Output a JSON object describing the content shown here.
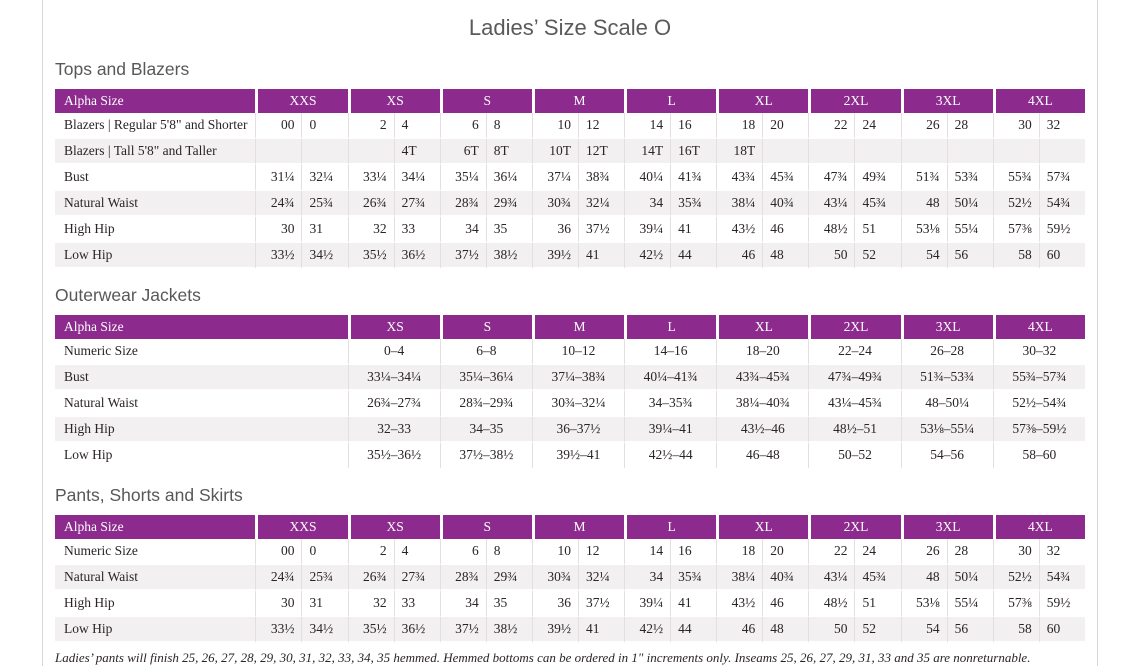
{
  "page": {
    "title": "Ladies’ Size Scale O",
    "footnote": "Ladies’ pants will finish 25, 26, 27, 28, 29, 30, 31, 32, 33, 34, 35 hemmed. Hemmed bottoms can be ordered in 1\" increments only. Inseams 25, 26, 27, 29, 31, 33 and 35 are nonreturnable."
  },
  "colors": {
    "header_purple": "#8c2b8d",
    "row_alt_gray": "#f2f0f0",
    "heading_gray": "#58585a",
    "frame_line_gray": "#d6d6d6"
  },
  "sections": [
    {
      "heading": "Tops and Blazers",
      "table_type": "paired",
      "label_header": "Alpha Size",
      "size_headers": [
        "XXS",
        "XS",
        "S",
        "M",
        "L",
        "XL",
        "2XL",
        "3XL",
        "4XL"
      ],
      "rows": [
        {
          "label": "Blazers | Regular 5'8\" and Shorter",
          "values": [
            "00",
            "0",
            "2",
            "4",
            "6",
            "8",
            "10",
            "12",
            "14",
            "16",
            "18",
            "20",
            "22",
            "24",
            "26",
            "28",
            "30",
            "32"
          ]
        },
        {
          "label": "Blazers | Tall 5'8\" and Taller",
          "values": [
            "",
            "",
            "",
            "4T",
            "6T",
            "8T",
            "10T",
            "12T",
            "14T",
            "16T",
            "18T",
            "",
            "",
            "",
            "",
            "",
            "",
            ""
          ]
        },
        {
          "label": "Bust",
          "values": [
            "31¼",
            "32¼",
            "33¼",
            "34¼",
            "35¼",
            "36¼",
            "37¼",
            "38¾",
            "40¼",
            "41¾",
            "43¾",
            "45¾",
            "47¾",
            "49¾",
            "51¾",
            "53¾",
            "55¾",
            "57¾"
          ]
        },
        {
          "label": "Natural Waist",
          "values": [
            "24¾",
            "25¾",
            "26¾",
            "27¾",
            "28¾",
            "29¾",
            "30¾",
            "32¼",
            "34",
            "35¾",
            "38¼",
            "40¾",
            "43¼",
            "45¾",
            "48",
            "50¼",
            "52½",
            "54¾"
          ]
        },
        {
          "label": "High Hip",
          "values": [
            "30",
            "31",
            "32",
            "33",
            "34",
            "35",
            "36",
            "37½",
            "39¼",
            "41",
            "43½",
            "46",
            "48½",
            "51",
            "53⅛",
            "55¼",
            "57⅜",
            "59½"
          ]
        },
        {
          "label": "Low Hip",
          "values": [
            "33½",
            "34½",
            "35½",
            "36½",
            "37½",
            "38½",
            "39½",
            "41",
            "42½",
            "44",
            "46",
            "48",
            "50",
            "52",
            "54",
            "56",
            "58",
            "60"
          ]
        }
      ]
    },
    {
      "heading": "Outerwear Jackets",
      "table_type": "single",
      "label_header": "Alpha Size",
      "size_headers": [
        "XS",
        "S",
        "M",
        "L",
        "XL",
        "2XL",
        "3XL",
        "4XL"
      ],
      "rows": [
        {
          "label": "Numeric Size",
          "values": [
            "0–4",
            "6–8",
            "10–12",
            "14–16",
            "18–20",
            "22–24",
            "26–28",
            "30–32"
          ]
        },
        {
          "label": "Bust",
          "values": [
            "33¼–34¼",
            "35¼–36¼",
            "37¼–38¾",
            "40¼–41¾",
            "43¾–45¾",
            "47¾–49¾",
            "51¾–53¾",
            "55¾–57¾"
          ]
        },
        {
          "label": "Natural Waist",
          "values": [
            "26¾–27¾",
            "28¾–29¾",
            "30¾–32¼",
            "34–35¾",
            "38¼–40¾",
            "43¼–45¾",
            "48–50¼",
            "52½–54¾"
          ]
        },
        {
          "label": "High Hip",
          "values": [
            "32–33",
            "34–35",
            "36–37½",
            "39¼–41",
            "43½–46",
            "48½–51",
            "53⅛–55¼",
            "57⅜–59½"
          ]
        },
        {
          "label": "Low Hip",
          "values": [
            "35½–36½",
            "37½–38½",
            "39½–41",
            "42½–44",
            "46–48",
            "50–52",
            "54–56",
            "58–60"
          ]
        }
      ]
    },
    {
      "heading": "Pants, Shorts and Skirts",
      "table_type": "paired",
      "label_header": "Alpha Size",
      "size_headers": [
        "XXS",
        "XS",
        "S",
        "M",
        "L",
        "XL",
        "2XL",
        "3XL",
        "4XL"
      ],
      "rows": [
        {
          "label": "Numeric Size",
          "values": [
            "00",
            "0",
            "2",
            "4",
            "6",
            "8",
            "10",
            "12",
            "14",
            "16",
            "18",
            "20",
            "22",
            "24",
            "26",
            "28",
            "30",
            "32"
          ]
        },
        {
          "label": "Natural Waist",
          "values": [
            "24¾",
            "25¾",
            "26¾",
            "27¾",
            "28¾",
            "29¾",
            "30¾",
            "32¼",
            "34",
            "35¾",
            "38¼",
            "40¾",
            "43¼",
            "45¾",
            "48",
            "50¼",
            "52½",
            "54¾"
          ]
        },
        {
          "label": "High Hip",
          "values": [
            "30",
            "31",
            "32",
            "33",
            "34",
            "35",
            "36",
            "37½",
            "39¼",
            "41",
            "43½",
            "46",
            "48½",
            "51",
            "53⅛",
            "55¼",
            "57⅜",
            "59½"
          ]
        },
        {
          "label": "Low Hip",
          "values": [
            "33½",
            "34½",
            "35½",
            "36½",
            "37½",
            "38½",
            "39½",
            "41",
            "42½",
            "44",
            "46",
            "48",
            "50",
            "52",
            "54",
            "56",
            "58",
            "60"
          ]
        }
      ]
    }
  ]
}
